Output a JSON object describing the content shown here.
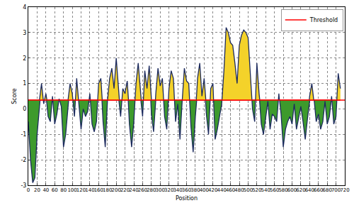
{
  "chart_data": {
    "type": "line",
    "xlabel": "Position",
    "ylabel": "Score",
    "x": [
      0,
      5,
      10,
      15,
      20,
      25,
      30,
      35,
      40,
      45,
      50,
      55,
      60,
      65,
      70,
      75,
      80,
      85,
      90,
      95,
      100,
      105,
      110,
      115,
      120,
      125,
      130,
      135,
      140,
      145,
      150,
      155,
      160,
      165,
      170,
      175,
      180,
      185,
      190,
      195,
      200,
      205,
      210,
      215,
      220,
      225,
      230,
      235,
      240,
      245,
      250,
      255,
      260,
      265,
      270,
      275,
      280,
      285,
      290,
      295,
      300,
      305,
      310,
      315,
      320,
      325,
      330,
      335,
      340,
      345,
      350,
      355,
      360,
      365,
      370,
      375,
      380,
      385,
      390,
      395,
      400,
      405,
      410,
      415,
      420,
      425,
      430,
      435,
      440,
      445,
      450,
      455,
      460,
      465,
      470,
      475,
      480,
      485,
      490,
      495,
      500,
      505,
      510,
      515,
      520,
      525,
      530,
      535,
      540,
      545,
      550,
      555,
      560,
      565,
      570,
      575,
      580,
      585,
      590,
      595,
      600,
      605,
      610,
      615,
      620,
      625,
      630,
      635,
      640,
      645,
      650,
      655,
      660,
      665,
      670,
      675,
      680,
      685,
      690,
      695,
      700,
      705,
      710
    ],
    "values": [
      -0.5,
      -2.0,
      -2.9,
      -2.7,
      -1.0,
      0.3,
      1.0,
      0.2,
      0.6,
      -0.3,
      -0.5,
      0.5,
      -0.6,
      -0.2,
      0.4,
      0.1,
      -1.5,
      -1.0,
      0.3,
      1.0,
      0.6,
      -0.3,
      1.2,
      0.2,
      -0.8,
      0.0,
      -0.3,
      -0.1,
      0.6,
      -0.6,
      -0.9,
      -0.5,
      1.0,
      1.2,
      -0.5,
      -1.5,
      0.3,
      1.2,
      1.6,
      0.8,
      2.0,
      0.5,
      -0.3,
      0.8,
      0.6,
      1.1,
      -0.6,
      -1.5,
      -0.5,
      1.0,
      1.8,
      0.5,
      -0.3,
      1.5,
      0.8,
      1.7,
      -0.2,
      -0.9,
      0.6,
      1.6,
      0.9,
      1.2,
      -0.3,
      -0.8,
      0.8,
      1.5,
      1.2,
      -0.5,
      0.2,
      -1.2,
      0.3,
      1.6,
      1.1,
      1.0,
      -0.7,
      -1.7,
      -0.3,
      1.2,
      1.8,
      0.5,
      1.2,
      -0.2,
      -1.0,
      0.8,
      1.0,
      -1.2,
      -0.8,
      -0.3,
      0.2,
      1.5,
      3.2,
      3.0,
      2.6,
      2.5,
      1.8,
      1.0,
      2.5,
      2.9,
      3.1,
      3.0,
      2.8,
      1.5,
      0.0,
      -0.5,
      1.8,
      0.6,
      -0.6,
      -1.0,
      -0.4,
      0.3,
      -0.8,
      -0.2,
      -0.3,
      -0.5,
      0.6,
      -0.2,
      -1.5,
      -0.8,
      -0.5,
      -0.3,
      -0.6,
      0.2,
      -0.8,
      -0.3,
      0.1,
      -0.5,
      -1.2,
      -0.4,
      0.5,
      1.0,
      0.4,
      -0.5,
      -0.2,
      -0.8,
      -0.5,
      0.3,
      -0.6,
      -0.3,
      0.5,
      -0.6,
      -0.3,
      1.4,
      0.8
    ],
    "color": "#1c2a5e",
    "threshold": {
      "name": "Threshold",
      "value": 0.35,
      "color": "#ff0000"
    },
    "xlim": [
      0,
      720
    ],
    "xticks": [
      0,
      20,
      40,
      60,
      80,
      100,
      120,
      140,
      160,
      180,
      200,
      220,
      240,
      260,
      280,
      300,
      320,
      340,
      360,
      380,
      400,
      420,
      440,
      460,
      480,
      500,
      520,
      540,
      560,
      580,
      600,
      620,
      640,
      660,
      680,
      700,
      720
    ],
    "ylim": [
      -3,
      4
    ],
    "yticks": [
      -3,
      -2,
      -1,
      0,
      1,
      2,
      3,
      4
    ],
    "grid": true,
    "legend": "upper right"
  }
}
